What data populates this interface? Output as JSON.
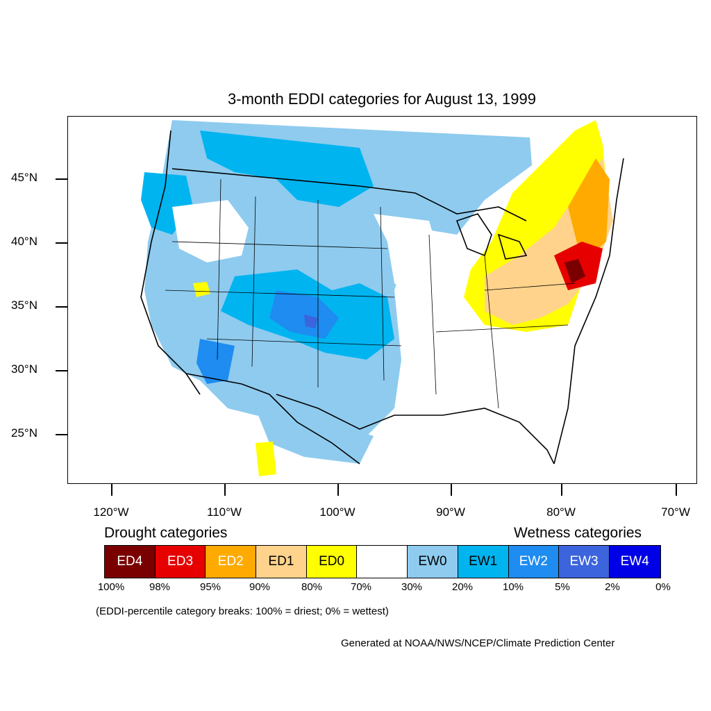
{
  "title": "3-month EDDI categories for August 13, 1999",
  "latitude_labels": [
    "45°N",
    "40°N",
    "35°N",
    "30°N",
    "25°N"
  ],
  "longitude_labels": [
    "120°W",
    "110°W",
    "100°W",
    "90°W",
    "80°W",
    "70°W"
  ],
  "legend": {
    "drought_heading": "Drought categories",
    "wetness_heading": "Wetness categories",
    "categories": [
      {
        "label": "ED4",
        "color": "#7a0000",
        "text_color": "#ffffff"
      },
      {
        "label": "ED3",
        "color": "#e60000",
        "text_color": "#ffffff"
      },
      {
        "label": "ED2",
        "color": "#ffaa00",
        "text_color": "#ffffff"
      },
      {
        "label": "ED1",
        "color": "#ffd38c",
        "text_color": "#000000"
      },
      {
        "label": "ED0",
        "color": "#ffff00",
        "text_color": "#000000"
      },
      {
        "label": "",
        "color": "#ffffff",
        "text_color": "#000000"
      },
      {
        "label": "EW0",
        "color": "#8ecbef",
        "text_color": "#000000"
      },
      {
        "label": "EW1",
        "color": "#00b4f0",
        "text_color": "#000000"
      },
      {
        "label": "EW2",
        "color": "#1e8cf0",
        "text_color": "#ffffff"
      },
      {
        "label": "EW3",
        "color": "#3c64dc",
        "text_color": "#ffffff"
      },
      {
        "label": "EW4",
        "color": "#0000e6",
        "text_color": "#ffffff"
      }
    ],
    "percentile_breaks": [
      "100%",
      "98%",
      "95%",
      "90%",
      "80%",
      "70%",
      "30%",
      "20%",
      "10%",
      "5%",
      "2%",
      "0%"
    ]
  },
  "note": "(EDDI-percentile category breaks: 100% = driest; 0% = wettest)",
  "credit": "Generated at NOAA/NWS/NCEP/Climate Prediction Center"
}
